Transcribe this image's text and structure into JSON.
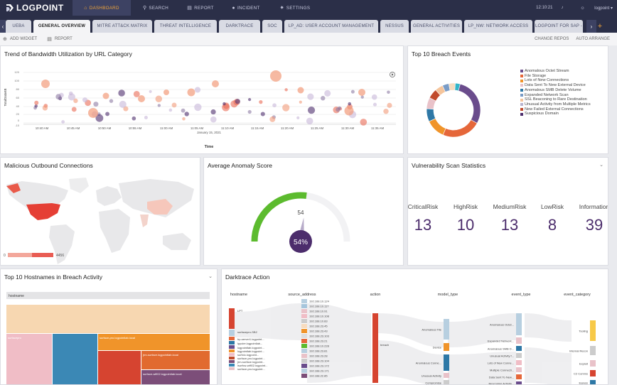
{
  "brand": {
    "name": "LOGPOINT"
  },
  "nav": [
    {
      "label": "DASHBOARD",
      "icon": "home-icon"
    },
    {
      "label": "SEARCH",
      "icon": "search-icon"
    },
    {
      "label": "REPORT",
      "icon": "report-icon"
    },
    {
      "label": "INCIDENT",
      "icon": "incident-icon"
    },
    {
      "label": "SETTINGS",
      "icon": "gear-icon"
    }
  ],
  "topright": {
    "time": "12:10:21",
    "user": "logpoint"
  },
  "tabs": [
    "UEBA",
    "GENERAL OVERVIEW",
    "MITRE ATT&CK MATRIX",
    "THREAT INTELLIGENCE",
    "DARKTRACE",
    "SOC",
    "LP_AD: USER ACCOUNT MANAGEMENT",
    "NESSUS",
    "GENERAL ACTIVITIES",
    "LP_NW: NETWORK ACCESS",
    "LOGPOINT FOR SAP -"
  ],
  "toolbar": {
    "add_widget": "ADD WIDGET",
    "report": "REPORT",
    "change_repos": "CHANGE REPOS",
    "auto_arrange": "AUTO ARRANGE"
  },
  "bandwidth": {
    "title": "Trend of Bandwidth Utilization by URL Category",
    "ylabel": "TotalDataKB",
    "xlabel": "Time",
    "date": "January 15, 2021",
    "xticks": [
      "10:40 AM",
      "10:45 AM",
      "10:50 AM",
      "10:55 AM",
      "11:00 AM",
      "11:05 AM",
      "11:10 AM",
      "11:15 AM",
      "11:20 AM",
      "11:25 AM",
      "11:30 AM",
      "11:35 AM"
    ],
    "yticks": [
      "120",
      "100",
      "80",
      "60",
      "40",
      "20",
      "0",
      "-10"
    ]
  },
  "breach": {
    "title": "Top 10 Breach Events",
    "legend": [
      "Anomalous Octet Stream",
      "File Storage",
      "Lots of New Connections",
      "Data Sent To New External Device",
      "Anomalous SMB Delete Volume",
      "Expanded Network Scan",
      "SSL Beaconing to Rare Destination",
      "Unusual Activity from Multiple Metrics",
      "New Failed External Connections",
      "Suspicious Domain"
    ]
  },
  "outbound": {
    "title": "Malicious Outbound Connections",
    "scale_min": "0",
    "scale_max": "4456"
  },
  "anomaly": {
    "title": "Average Anomaly Score",
    "value": "54",
    "badge": "54%",
    "fraction": 0.54
  },
  "vuln": {
    "title": "Vulnerability Scan Statistics",
    "stats": [
      {
        "label": "CriticalRisk",
        "value": "13"
      },
      {
        "label": "HighRisk",
        "value": "10"
      },
      {
        "label": "MediumRisk",
        "value": "13"
      },
      {
        "label": "LowRisk",
        "value": "8"
      },
      {
        "label": "Information",
        "value": "39"
      }
    ]
  },
  "hostnames": {
    "title": "Top 10 Hostnames in Breach Activity",
    "header": "hostname",
    "labels": [
      "surface-pro.logpointlab.local",
      "jrm-surface.logpointlab.local",
      "surface-wifi02.logpointlab.local",
      "surfacepro"
    ]
  },
  "darktrace": {
    "title": "Darktrace Action",
    "columns": [
      "hostname",
      "source_address",
      "action",
      "model_type",
      "event_type",
      "event_category"
    ],
    "hosts": [
      "LPT",
      "surfacepro-SB2",
      "hp-server1.logpoint...",
      "lppcier.logpointlab...",
      "logpointlab.logpoint...",
      "logpointlab.logpoint...",
      "surfclo.logpoint...",
      "surface-pro.logpoint...",
      "jrm-surface.logpoint...",
      "lsurfcw-wifi02.logpoint...",
      "surface-pro.logpoint..."
    ],
    "ips": [
      "192.168.10.124",
      "192.168.10.117",
      "192.168.10.91",
      "192.168.10.108",
      "192.168.10.83",
      "192.168.23.45",
      "192.168.23.43",
      "192.168.23.103",
      "192.168.23.21",
      "192.168.10.228",
      "192.168.23.81",
      "192.168.23.28",
      "192.168.23.104",
      "192.168.23.172",
      "192.168.23.171",
      "192.168.22.85"
    ],
    "action": "breach",
    "models": [
      "Anomalous File",
      "Device",
      "Anomalous Conne...",
      "Unusual Activity",
      "Compromise"
    ],
    "events": [
      "Anomalous Octet...",
      "Expanded Network...",
      "Anomalous SMB D...",
      "Unusual Activity f...",
      "Lots of New Conne...",
      "Multiple Connecti...",
      "Data Sent To New...",
      "Beaconing Activity..."
    ],
    "categories": [
      "Tooling",
      "Internal Recon",
      "Exploit",
      "C2 Comms",
      "Egress"
    ]
  }
}
